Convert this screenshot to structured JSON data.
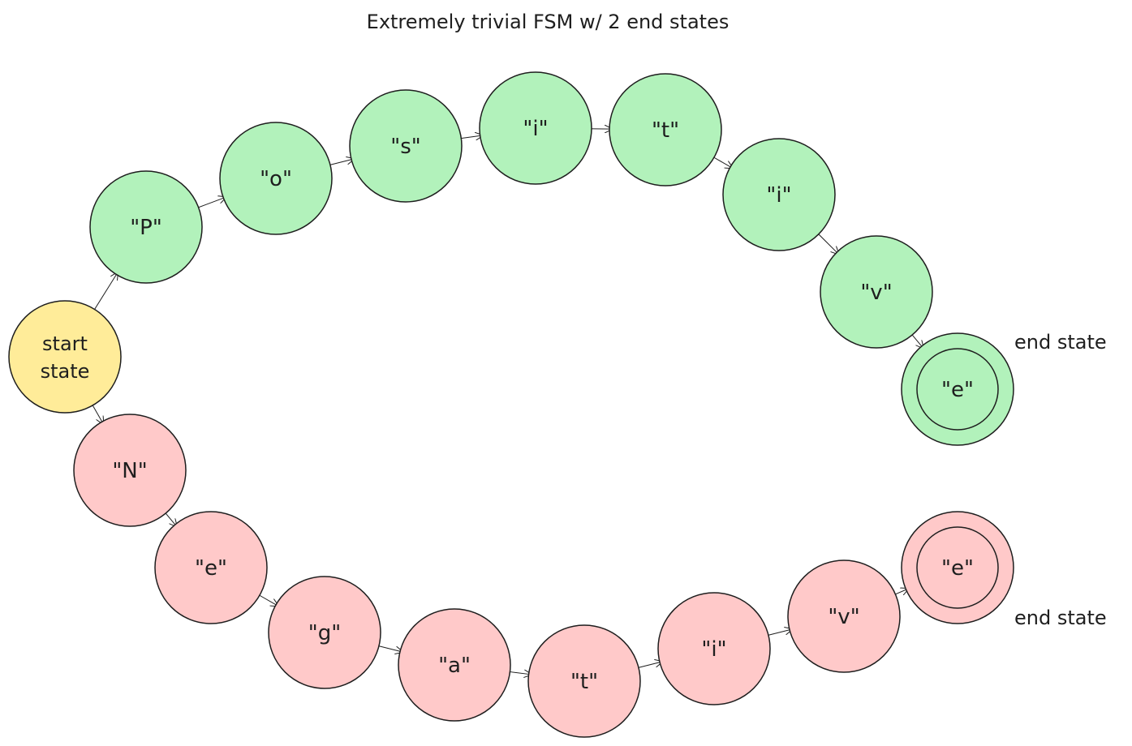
{
  "title": "Extremely trivial FSM w/ 2 end states",
  "colors": {
    "start": "#ffec99",
    "accept_path": "#b2f2bb",
    "reject_path": "#ffc9c9",
    "stroke": "#1e1e1e"
  },
  "start": {
    "label_line1": "start",
    "label_line2": "state"
  },
  "end_state_label": "end state",
  "upper_path": {
    "states": [
      {
        "label": "\"P\""
      },
      {
        "label": "\"o\""
      },
      {
        "label": "\"s\""
      },
      {
        "label": "\"i\""
      },
      {
        "label": "\"t\""
      },
      {
        "label": "\"i\""
      },
      {
        "label": "\"v\""
      },
      {
        "label": "\"e\"",
        "accepting": true
      }
    ]
  },
  "lower_path": {
    "states": [
      {
        "label": "\"N\""
      },
      {
        "label": "\"e\""
      },
      {
        "label": "\"g\""
      },
      {
        "label": "\"a\""
      },
      {
        "label": "\"t\""
      },
      {
        "label": "\"i\""
      },
      {
        "label": "\"v\""
      },
      {
        "label": "\"e\"",
        "accepting": true
      }
    ]
  }
}
